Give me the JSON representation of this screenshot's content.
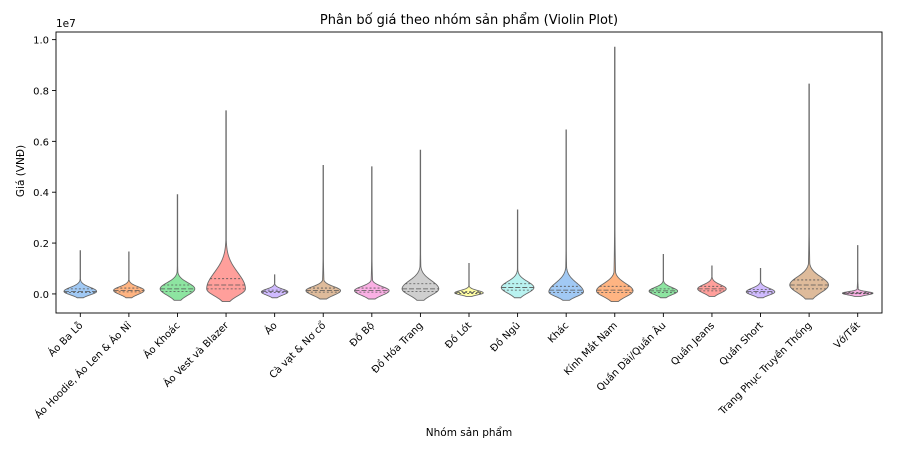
{
  "chart_data": {
    "type": "violin",
    "title": "Phân bố giá theo nhóm sản phẩm (Violin Plot)",
    "xlabel": "Nhóm sản phẩm",
    "ylabel": "Giá (VNĐ)",
    "y_scale_label": "1e7",
    "ylim": [
      -750000,
      10300000
    ],
    "yticks": [
      0,
      2000000,
      4000000,
      6000000,
      8000000,
      10000000
    ],
    "ytick_labels": [
      "0.0",
      "0.2",
      "0.4",
      "0.6",
      "0.8",
      "1.0"
    ],
    "grid": false,
    "inner": "quartile",
    "categories": [
      "Áo Ba Lỗ",
      "Áo Hoodie, Áo Len & Áo Nỉ",
      "Áo Khoác",
      "Áo Vest và Blazer",
      "Áo",
      "Cà vạt & Nơ cổ",
      "Đồ Bộ",
      "Đồ Hóa Trang",
      "Đồ Lót",
      "Đồ Ngủ",
      "Khác",
      "Kính Mắt Nam",
      "Quần Dài/Quần Âu",
      "Quần Jeans",
      "Quần Short",
      "Trang Phục Truyền Thống",
      "Vớ/Tất"
    ],
    "colors": [
      "#a1c9f4",
      "#ffb482",
      "#8de5a1",
      "#ff9f9b",
      "#d0bbff",
      "#debb9b",
      "#fab0e4",
      "#cfcfcf",
      "#fffea3",
      "#b9f2f0",
      "#a1c9f4",
      "#ffb482",
      "#8de5a1",
      "#ff9f9b",
      "#d0bbff",
      "#debb9b",
      "#fab0e4"
    ],
    "series": [
      {
        "min": -150000,
        "max": 1700000,
        "q1": 50000,
        "median": 100000,
        "q3": 200000,
        "peak": 100000,
        "width": 0.8,
        "bulge": 0.55
      },
      {
        "min": -150000,
        "max": 1650000,
        "q1": 80000,
        "median": 140000,
        "q3": 230000,
        "peak": 140000,
        "width": 0.75,
        "bulge": 0.55
      },
      {
        "min": -250000,
        "max": 3900000,
        "q1": 100000,
        "median": 200000,
        "q3": 350000,
        "peak": 200000,
        "width": 0.85,
        "bulge": 0.75
      },
      {
        "min": -300000,
        "max": 7200000,
        "q1": 200000,
        "median": 350000,
        "q3": 600000,
        "peak": 200000,
        "width": 0.95,
        "bulge": 1.2
      },
      {
        "min": -150000,
        "max": 750000,
        "q1": 50000,
        "median": 90000,
        "q3": 150000,
        "peak": 80000,
        "width": 0.65,
        "bulge": 0.45
      },
      {
        "min": -200000,
        "max": 5050000,
        "q1": 70000,
        "median": 130000,
        "q3": 230000,
        "peak": 130000,
        "width": 0.85,
        "bulge": 0.55
      },
      {
        "min": -200000,
        "max": 5000000,
        "q1": 70000,
        "median": 130000,
        "q3": 230000,
        "peak": 130000,
        "width": 0.85,
        "bulge": 0.55
      },
      {
        "min": -250000,
        "max": 5650000,
        "q1": 100000,
        "median": 200000,
        "q3": 400000,
        "peak": 200000,
        "width": 0.9,
        "bulge": 0.85
      },
      {
        "min": -100000,
        "max": 1200000,
        "q1": 20000,
        "median": 60000,
        "q3": 100000,
        "peak": 40000,
        "width": 0.7,
        "bulge": 0.45
      },
      {
        "min": -150000,
        "max": 3300000,
        "q1": 150000,
        "median": 250000,
        "q3": 400000,
        "peak": 250000,
        "width": 0.8,
        "bulge": 0.9
      },
      {
        "min": -250000,
        "max": 6450000,
        "q1": 50000,
        "median": 150000,
        "q3": 300000,
        "peak": 80000,
        "width": 0.85,
        "bulge": 0.95
      },
      {
        "min": -300000,
        "max": 9700000,
        "q1": 50000,
        "median": 150000,
        "q3": 300000,
        "peak": 120000,
        "width": 0.9,
        "bulge": 1.0
      },
      {
        "min": -150000,
        "max": 1550000,
        "q1": 60000,
        "median": 120000,
        "q3": 200000,
        "peak": 110000,
        "width": 0.7,
        "bulge": 0.5
      },
      {
        "min": -100000,
        "max": 1100000,
        "q1": 120000,
        "median": 200000,
        "q3": 300000,
        "peak": 200000,
        "width": 0.7,
        "bulge": 0.5
      },
      {
        "min": -150000,
        "max": 1000000,
        "q1": 40000,
        "median": 100000,
        "q3": 170000,
        "peak": 80000,
        "width": 0.7,
        "bulge": 0.45
      },
      {
        "min": -200000,
        "max": 8250000,
        "q1": 200000,
        "median": 350000,
        "q3": 550000,
        "peak": 350000,
        "width": 0.95,
        "bulge": 1.1
      },
      {
        "min": -100000,
        "max": 1900000,
        "q1": 10000,
        "median": 30000,
        "q3": 60000,
        "peak": 30000,
        "width": 0.75,
        "bulge": 0.35
      }
    ]
  }
}
